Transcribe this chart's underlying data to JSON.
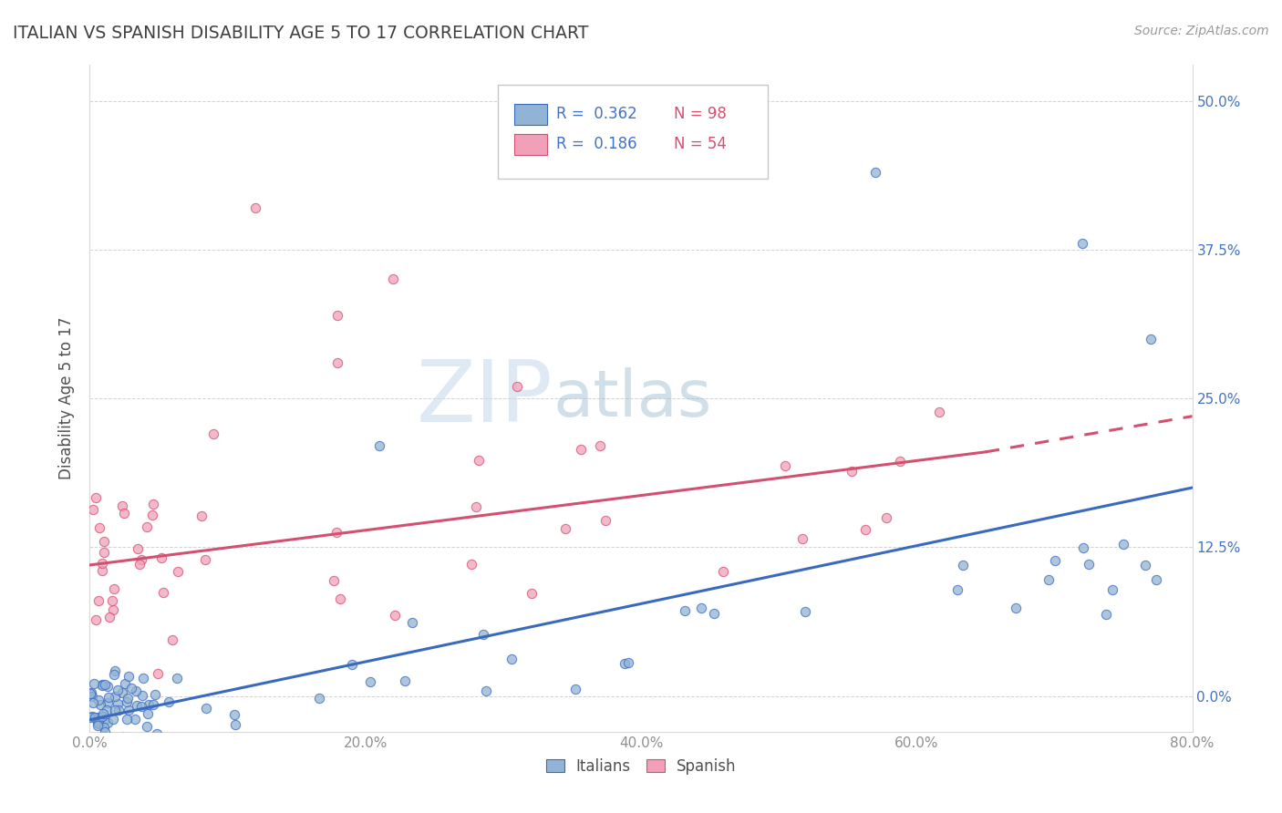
{
  "title": "ITALIAN VS SPANISH DISABILITY AGE 5 TO 17 CORRELATION CHART",
  "source": "Source: ZipAtlas.com",
  "ylabel": "Disability Age 5 to 17",
  "xlim": [
    0.0,
    0.8
  ],
  "ylim": [
    -0.03,
    0.53
  ],
  "ytick_vals": [
    0.0,
    0.125,
    0.25,
    0.375,
    0.5
  ],
  "ytick_labels_right": [
    "0.0%",
    "12.5%",
    "25.0%",
    "37.5%",
    "50.0%"
  ],
  "ytick_labels_left": [
    "",
    "",
    "",
    "",
    ""
  ],
  "xtick_vals": [
    0.0,
    0.05,
    0.1,
    0.15,
    0.2,
    0.25,
    0.3,
    0.35,
    0.4,
    0.45,
    0.5,
    0.55,
    0.6,
    0.65,
    0.7,
    0.75,
    0.8
  ],
  "xtick_labels": [
    "0.0%",
    "",
    "",
    "",
    "20.0%",
    "",
    "",
    "",
    "40.0%",
    "",
    "",
    "",
    "60.0%",
    "",
    "",
    "",
    "80.0%"
  ],
  "italian_color": "#92b4d4",
  "spanish_color": "#f0a0b8",
  "italian_line_color": "#3a6abf",
  "spanish_line_color": "#d45070",
  "right_tick_color": "#4472c4",
  "watermark_zip_color": "#c8d8e8",
  "watermark_atlas_color": "#b8c8d8",
  "background_color": "#ffffff",
  "grid_color": "#c8c8c8",
  "title_color": "#404040",
  "axis_label_color": "#505050",
  "tick_label_color": "#909090",
  "legend_R_color": "#4472c4",
  "legend_N_color": "#d45070",
  "italian_trend": [
    0.0,
    0.8,
    -0.02,
    0.175
  ],
  "spanish_trend_solid": [
    0.0,
    0.65,
    0.11,
    0.205
  ],
  "spanish_trend_dash": [
    0.65,
    0.8,
    0.205,
    0.235
  ]
}
